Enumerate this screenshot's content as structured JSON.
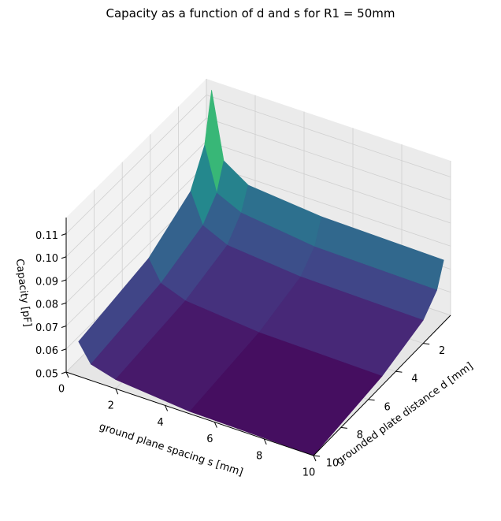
{
  "chart_data": {
    "type": "surface",
    "title": "Capacity as a function of d and s for R1 = 50mm",
    "xlabel": "ground plane spacing s [mm]",
    "ylabel": "grounded plate distance d [mm]",
    "zlabel": "Capacity [pF]",
    "x_ticks": [
      "0",
      "2",
      "4",
      "6",
      "8",
      "10"
    ],
    "y_ticks": [
      "2",
      "4",
      "6",
      "8",
      "10"
    ],
    "z_ticks": [
      "0.05",
      "0.06",
      "0.07",
      "0.08",
      "0.09",
      "0.10",
      "0.11"
    ],
    "xlim": [
      0,
      10
    ],
    "ylim": [
      0,
      10
    ],
    "zlim": [
      0.05,
      0.117
    ],
    "colormap": "viridis",
    "grid": true,
    "s": [
      0.5,
      1,
      2,
      5,
      10
    ],
    "d": [
      0.5,
      1,
      2,
      5,
      10
    ],
    "z": [
      [
        0.117,
        0.096,
        0.082,
        0.071,
        0.065
      ],
      [
        0.088,
        0.077,
        0.069,
        0.062,
        0.057
      ],
      [
        0.081,
        0.072,
        0.064,
        0.058,
        0.054
      ],
      [
        0.078,
        0.068,
        0.061,
        0.055,
        0.051
      ],
      [
        0.077,
        0.067,
        0.06,
        0.054,
        0.05
      ]
    ]
  }
}
